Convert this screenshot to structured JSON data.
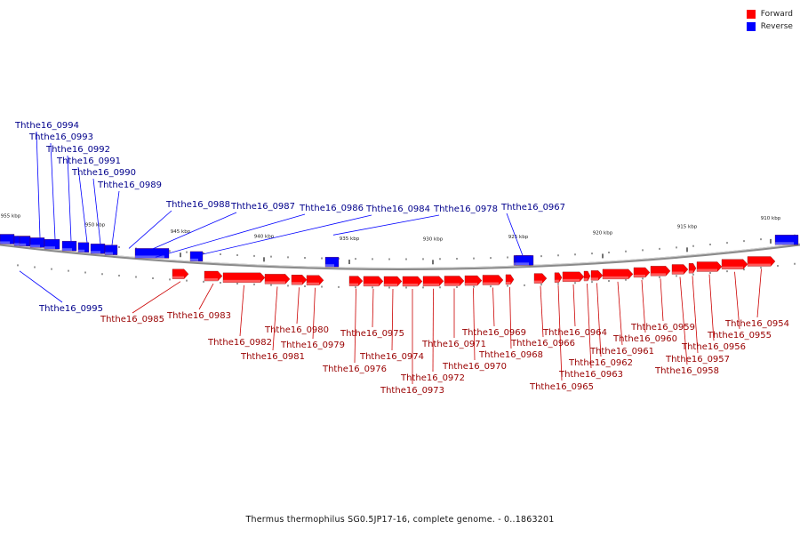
{
  "legend": {
    "items": [
      {
        "label": "Forward",
        "color": "#ff0000"
      },
      {
        "label": "Reverse",
        "color": "#0000ff"
      }
    ]
  },
  "caption": "Thermus thermophilus SG0.5JP17-16, complete genome. - 0..1863201",
  "axis": {
    "ticks": [
      "955 kbp",
      "950 kbp",
      "945 kbp",
      "940 kbp",
      "935 kbp",
      "930 kbp",
      "925 kbp",
      "920 kbp",
      "915 kbp",
      "910 kbp"
    ]
  },
  "genes": {
    "reverse": [
      "Ththe16_0995",
      "Ththe16_0994",
      "Ththe16_0993",
      "Ththe16_0992",
      "Ththe16_0991",
      "Ththe16_0990",
      "Ththe16_0989",
      "Ththe16_0988",
      "Ththe16_0987",
      "Ththe16_0986",
      "Ththe16_0984",
      "Ththe16_0978",
      "Ththe16_0967"
    ],
    "forward": [
      "Ththe16_0985",
      "Ththe16_0983",
      "Ththe16_0982",
      "Ththe16_0981",
      "Ththe16_0980",
      "Ththe16_0979",
      "Ththe16_0976",
      "Ththe16_0975",
      "Ththe16_0974",
      "Ththe16_0973",
      "Ththe16_0972",
      "Ththe16_0971",
      "Ththe16_0970",
      "Ththe16_0969",
      "Ththe16_0968",
      "Ththe16_0966",
      "Ththe16_0965",
      "Ththe16_0964",
      "Ththe16_0963",
      "Ththe16_0962",
      "Ththe16_0961",
      "Ththe16_0960",
      "Ththe16_0959",
      "Ththe16_0958",
      "Ththe16_0957",
      "Ththe16_0956",
      "Ththe16_0955",
      "Ththe16_0954"
    ]
  }
}
